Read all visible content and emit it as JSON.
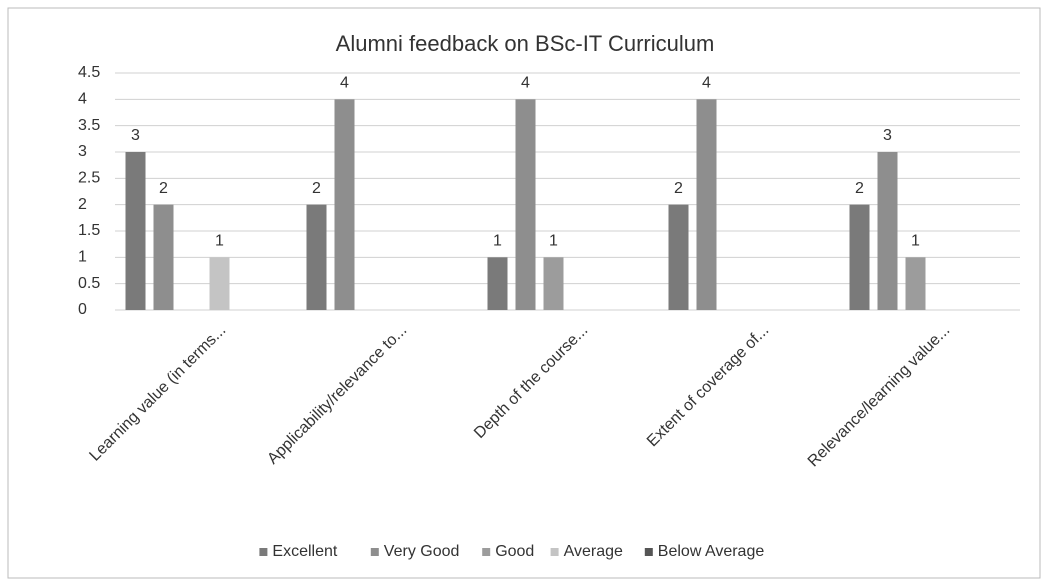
{
  "chart_data": {
    "type": "bar",
    "title": "Alumni feedback on BSc-IT Curriculum",
    "categories": [
      "Learning value (in terms...",
      "Applicability/relevance to...",
      "Depth of the course...",
      "Extent of coverage of...",
      "Relevance/learning value..."
    ],
    "series": [
      {
        "name": "Excellent",
        "color": "#7a7a7a",
        "values": [
          3,
          2,
          1,
          2,
          2
        ]
      },
      {
        "name": "Very Good",
        "color": "#8e8e8e",
        "values": [
          2,
          4,
          4,
          4,
          3
        ]
      },
      {
        "name": "Good",
        "color": "#9c9c9c",
        "values": [
          null,
          null,
          1,
          null,
          1
        ]
      },
      {
        "name": "Average",
        "color": "#c4c4c4",
        "values": [
          1,
          null,
          null,
          null,
          null
        ]
      },
      {
        "name": "Below Average",
        "color": "#555555",
        "values": [
          null,
          null,
          null,
          null,
          null
        ]
      }
    ],
    "ylim": [
      0,
      4.5
    ],
    "yticks": [
      0,
      0.5,
      1,
      1.5,
      2,
      2.5,
      3,
      3.5,
      4,
      4.5
    ],
    "grid": true,
    "legend": "bottom"
  }
}
